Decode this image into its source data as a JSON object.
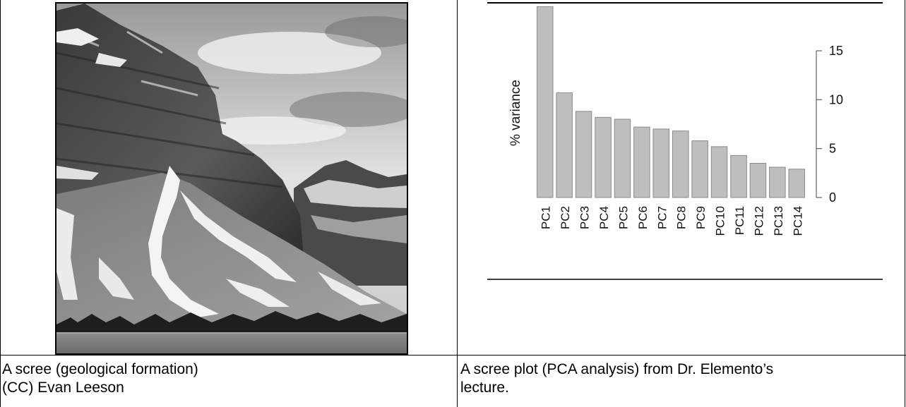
{
  "left_cell": {
    "photo_alt": "scree-mountain-photo",
    "caption_line1": "A scree (geological formation)",
    "caption_line2": "(CC) Evan Leeson"
  },
  "right_cell": {
    "caption_line1": "A scree plot (PCA analysis) from Dr. Elemento’s",
    "caption_line2": "lecture."
  },
  "chart_data": {
    "type": "bar",
    "categories": [
      "PC1",
      "PC2",
      "PC3",
      "PC4",
      "PC5",
      "PC6",
      "PC7",
      "PC8",
      "PC9",
      "PC10",
      "PC11",
      "PC12",
      "PC13",
      "PC14"
    ],
    "values": [
      19.5,
      10.7,
      8.8,
      8.2,
      8.0,
      7.2,
      7.0,
      6.8,
      5.8,
      5.2,
      4.3,
      3.5,
      3.1,
      2.9
    ],
    "ylabel": "% variance",
    "xlabel": "",
    "title": "",
    "ylim": [
      0,
      15
    ],
    "yticks": [
      0,
      5,
      10,
      15
    ],
    "y_axis_side": "right",
    "bar_color": "#bebebe",
    "bar_edge_color": "#8a8a8a",
    "grid": false
  }
}
